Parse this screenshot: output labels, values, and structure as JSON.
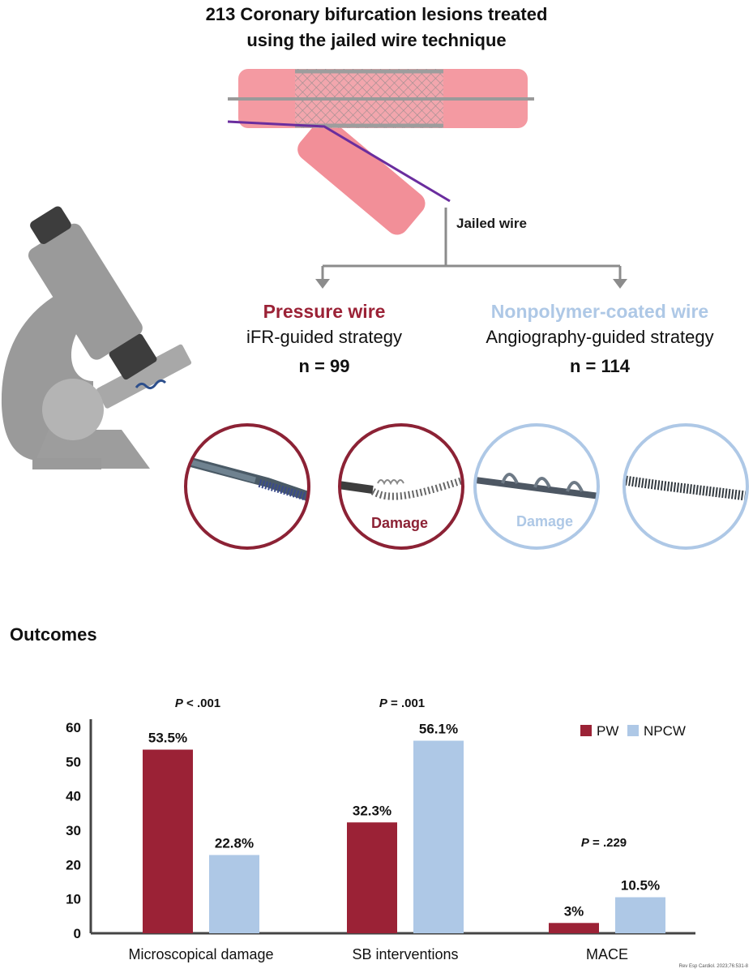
{
  "title_lines": [
    "213 Coronary bifurcation lesions treated",
    "using the jailed wire technique"
  ],
  "jailed_wire_label": "Jailed wire",
  "groups": {
    "pw": {
      "name": "Pressure wire",
      "strategy": "iFR-guided strategy",
      "n": "n = 99",
      "color": "#9b2236"
    },
    "npcw": {
      "name": "Nonpolymer-coated wire",
      "strategy": "Angiography-guided strategy",
      "n": "n = 114",
      "color": "#aec8e6"
    }
  },
  "micrographs": [
    {
      "group": "pw",
      "damage_label": ""
    },
    {
      "group": "pw",
      "damage_label": "Damage"
    },
    {
      "group": "npcw",
      "damage_label": "Damage"
    },
    {
      "group": "npcw",
      "damage_label": ""
    }
  ],
  "outcomes_title": "Outcomes",
  "chart_data": {
    "type": "bar",
    "categories": [
      "Microscopical damage",
      "SB interventions",
      "MACE"
    ],
    "series": [
      {
        "name": "PW",
        "values": [
          53.5,
          32.3,
          3
        ],
        "labels": [
          "53.5%",
          "32.3%",
          "3%"
        ],
        "color": "#9b2236"
      },
      {
        "name": "NPCW",
        "values": [
          22.8,
          56.1,
          10.5
        ],
        "labels": [
          "22.8%",
          "56.1%",
          "10.5%"
        ],
        "color": "#aec8e6"
      }
    ],
    "p_values": [
      {
        "prefix": "P",
        "rest": " < .001"
      },
      {
        "prefix": "P",
        "rest": " = .001"
      },
      {
        "prefix": "P",
        "rest": " = .229"
      }
    ],
    "yticks": [
      0,
      10,
      20,
      30,
      40,
      50,
      60
    ],
    "ylim": [
      0,
      62
    ],
    "legend": "top-right"
  },
  "credit": "Rev Esp Cardiol. 2023;76:531-8"
}
